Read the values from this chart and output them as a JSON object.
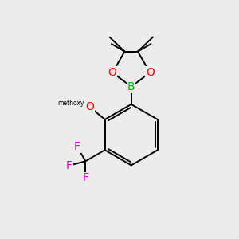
{
  "background_color": "#ececec",
  "bond_color": "#000000",
  "atom_colors": {
    "O": "#ff0000",
    "B": "#00bb00",
    "F": "#cc00cc",
    "C": "#000000"
  },
  "figsize": [
    3.0,
    3.0
  ],
  "dpi": 100
}
